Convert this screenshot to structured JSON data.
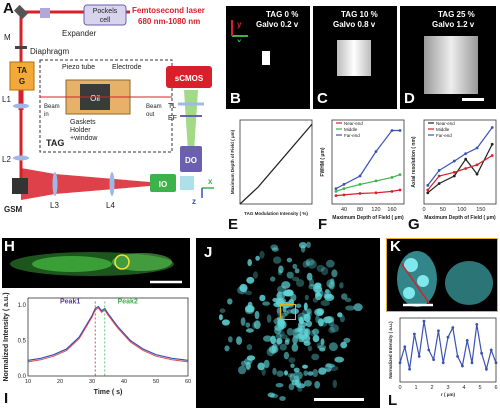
{
  "panels": [
    "A",
    "B",
    "C",
    "D",
    "E",
    "F",
    "G",
    "H",
    "I",
    "J",
    "K",
    "L"
  ],
  "setup": {
    "laser": "Femtosecond laser",
    "wavelength": "680 nm-1080 nm",
    "pockels": [
      "Pockels",
      "cell"
    ],
    "expander": "Expander",
    "m": "M",
    "diaphragm": "Diaphragm",
    "tag": [
      "TA",
      "G"
    ],
    "l1": "L1",
    "l2": "L2",
    "l3": "L3",
    "l4": "L4",
    "gsm": "GSM",
    "tagbox": "TAG",
    "piezo": "Piezo tube",
    "electrode": "Electrode",
    "oil": "Oil",
    "beam_in": [
      "Beam",
      "in"
    ],
    "beam_out": [
      "Beam",
      "out"
    ],
    "gaskets": "Gaskets",
    "holder": "Holder",
    "window": "+window",
    "scmos": "sCMOS",
    "tl": "TL",
    "ef": "EF",
    "do": "DO",
    "io": "IO",
    "axes": {
      "x": "x",
      "y": "y",
      "z": "z"
    }
  },
  "images_top": [
    {
      "tag": "TAG 0 %",
      "galvo": "Galvo 0.2 v"
    },
    {
      "tag": "TAG 10 %",
      "galvo": "Galvo 0.8 v"
    },
    {
      "tag": "TAG 25 %",
      "galvo": "Galvo 1.2 v"
    }
  ],
  "colors": {
    "laser_red": "#d8202a",
    "cyan_cells": "#5fd4d8",
    "green_fish": "#4fd04a",
    "purple_peak": "#5a3fa0",
    "green_peak": "#3bb34a",
    "blue_trace": "#3b52b5",
    "red_trace": "#d8202a"
  },
  "chart_data": [
    {
      "panel": "E",
      "type": "line",
      "xlabel": "TAG Modulation Intensity ( %)",
      "ylabel": "Maximum Depth of Field ( μm)",
      "series": [
        {
          "values": [
            [
              0,
              0
            ],
            [
              25,
              0.2
            ],
            [
              50,
              0.45
            ],
            [
              75,
              0.7
            ],
            [
              100,
              0.95
            ]
          ]
        }
      ]
    },
    {
      "panel": "F",
      "type": "line",
      "xlabel": "Maximum Depth of Field ( μm)",
      "ylabel": "FWHM ( μm)",
      "x_ticks": [
        "40",
        "80",
        "120",
        "160"
      ],
      "legend": [
        "Near-end",
        "Middle",
        "Far-end"
      ],
      "series": [
        {
          "name": "Near-end",
          "values": [
            [
              20,
              0.62
            ],
            [
              40,
              0.63
            ],
            [
              80,
              0.65
            ],
            [
              120,
              0.66
            ],
            [
              160,
              0.68
            ],
            [
              180,
              0.7
            ]
          ]
        },
        {
          "name": "Middle",
          "values": [
            [
              20,
              0.68
            ],
            [
              40,
              0.72
            ],
            [
              80,
              0.78
            ],
            [
              120,
              0.83
            ],
            [
              160,
              0.88
            ],
            [
              180,
              0.92
            ]
          ]
        },
        {
          "name": "Far-end",
          "values": [
            [
              20,
              0.72
            ],
            [
              40,
              0.78
            ],
            [
              80,
              0.9
            ],
            [
              120,
              1.25
            ],
            [
              160,
              1.55
            ],
            [
              180,
              1.55
            ]
          ]
        }
      ]
    },
    {
      "panel": "G",
      "type": "line",
      "xlabel": "Maximum Depth of Field ( μm)",
      "ylabel": "Axial resolution ( nm)",
      "x_ticks": [
        "0",
        "50",
        "100",
        "150"
      ],
      "legend": [
        "Near-end",
        "Middle",
        "Far-end"
      ],
      "series": [
        {
          "name": "Near-end",
          "values": [
            [
              10,
              420
            ],
            [
              40,
              520
            ],
            [
              80,
              600
            ],
            [
              110,
              780
            ],
            [
              140,
              620
            ],
            [
              180,
              940
            ]
          ]
        },
        {
          "name": "Middle",
          "values": [
            [
              10,
              450
            ],
            [
              40,
              600
            ],
            [
              80,
              640
            ],
            [
              110,
              680
            ],
            [
              140,
              720
            ],
            [
              180,
              820
            ]
          ]
        },
        {
          "name": "Far-end",
          "values": [
            [
              10,
              500
            ],
            [
              40,
              660
            ],
            [
              80,
              760
            ],
            [
              110,
              840
            ],
            [
              140,
              900
            ],
            [
              180,
              1120
            ]
          ]
        }
      ]
    },
    {
      "panel": "I",
      "type": "line",
      "xlabel": "Time ( s)",
      "ylabel": "Normalized Intensity ( a.u.)",
      "xlim": [
        10,
        60
      ],
      "ylim": [
        0.0,
        1.1
      ],
      "x_ticks": [
        "10",
        "20",
        "30",
        "40",
        "50",
        "60"
      ],
      "y_ticks": [
        "0.0",
        "0.5",
        "1.0"
      ],
      "annotations": [
        "Peak1",
        "Peak2"
      ],
      "series": [
        {
          "values": [
            [
              10,
              0.22
            ],
            [
              14,
              0.25
            ],
            [
              18,
              0.3
            ],
            [
              22,
              0.38
            ],
            [
              26,
              0.55
            ],
            [
              28,
              0.7
            ],
            [
              30,
              0.85
            ],
            [
              31,
              0.95
            ],
            [
              32,
              0.98
            ],
            [
              33,
              0.92
            ],
            [
              34,
              0.95
            ],
            [
              35,
              0.88
            ],
            [
              38,
              0.7
            ],
            [
              42,
              0.5
            ],
            [
              46,
              0.38
            ],
            [
              50,
              0.3
            ],
            [
              55,
              0.25
            ],
            [
              60,
              0.22
            ]
          ]
        }
      ]
    },
    {
      "panel": "L",
      "type": "line",
      "xlabel": "r ( μm)",
      "ylabel": "Normalized Intensity ( a.u.)",
      "x_ticks": [
        "0",
        "1",
        "2",
        "3",
        "4",
        "5",
        "6"
      ],
      "series": [
        {
          "values": [
            [
              0,
              0.3
            ],
            [
              0.3,
              0.55
            ],
            [
              0.6,
              0.2
            ],
            [
              0.9,
              0.75
            ],
            [
              1.2,
              0.4
            ],
            [
              1.5,
              0.95
            ],
            [
              1.8,
              0.5
            ],
            [
              2.1,
              0.35
            ],
            [
              2.4,
              0.8
            ],
            [
              2.7,
              0.3
            ],
            [
              3.0,
              0.7
            ],
            [
              3.3,
              0.85
            ],
            [
              3.6,
              0.4
            ],
            [
              3.9,
              0.25
            ],
            [
              4.2,
              0.65
            ],
            [
              4.5,
              0.3
            ],
            [
              4.8,
              0.9
            ],
            [
              5.1,
              0.45
            ],
            [
              5.4,
              0.2
            ],
            [
              5.7,
              0.5
            ],
            [
              6.0,
              0.3
            ]
          ]
        }
      ]
    }
  ]
}
